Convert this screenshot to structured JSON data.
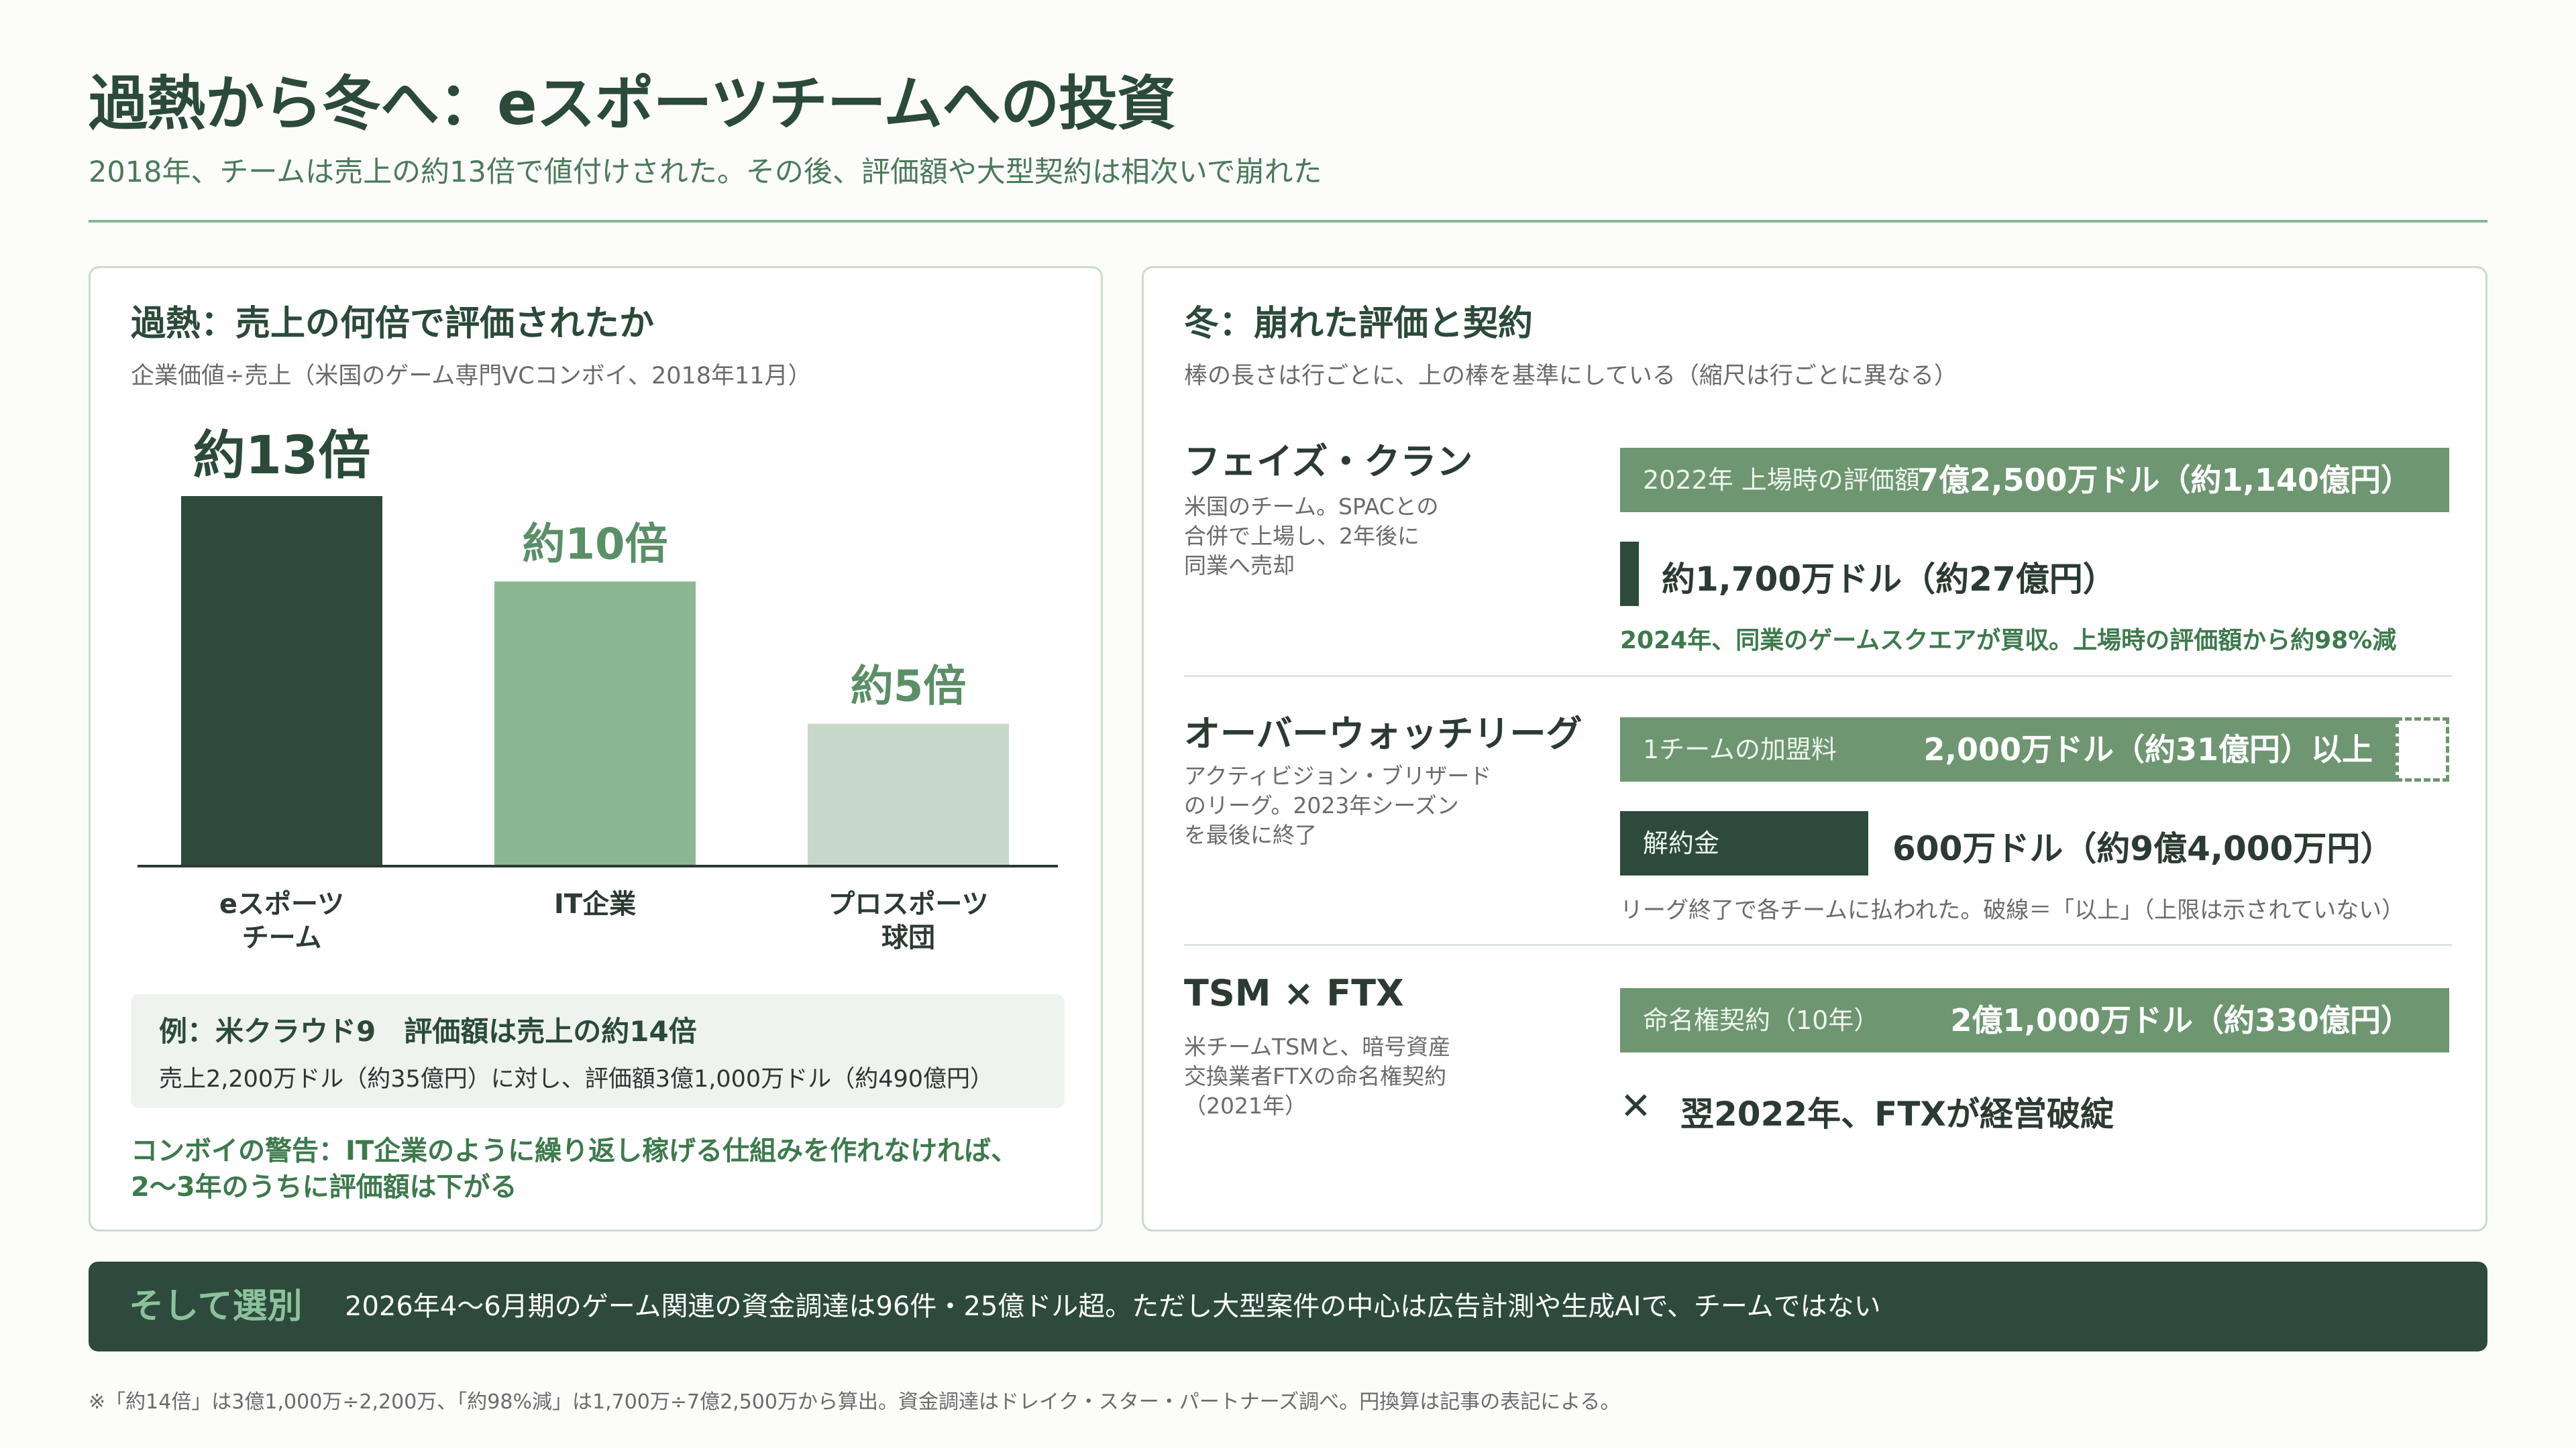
{
  "header": {
    "title": "過熱から冬へ：eスポーツチームへの投資",
    "subtitle": "2018年、チームは売上の約13倍で値付けされた。その後、評価額や大型契約は相次いで崩れた"
  },
  "left_panel": {
    "title": "過熱：売上の何倍で評価されたか",
    "subtitle": "企業価値÷売上（米国のゲーム専門VCコンボイ、2018年11月）",
    "example_title": "例：米クラウド9　評価額は売上の約14倍",
    "example_detail": "売上2,200万ドル（約35億円）に対し、評価額3億1,000万ドル（約490億円）",
    "warning_line1": "コンボイの警告：IT企業のように繰り返し稼げる仕組みを作れなければ、",
    "warning_line2": "2〜3年のうちに評価額は下がる"
  },
  "chart_data": {
    "type": "bar",
    "categories": [
      [
        "eスポーツ",
        "チーム"
      ],
      [
        "IT企業"
      ],
      [
        "プロスポーツ",
        "球団"
      ]
    ],
    "values": [
      13,
      10,
      5
    ],
    "value_labels": [
      "約13倍",
      "約10倍",
      "約5倍"
    ],
    "ylim": [
      0,
      13
    ],
    "colors": [
      "#2d4a3c",
      "#8bb893",
      "#c8d9cb"
    ],
    "value_label_colors": [
      "#2b4a3a",
      "#5b8f67",
      "#5b8f67"
    ]
  },
  "right_panel": {
    "title": "冬：崩れた評価と契約",
    "subtitle": "棒の長さは行ごとに、上の棒を基準にしている（縮尺は行ごとに異なる）",
    "cases": [
      {
        "name": "フェイズ・クラン",
        "desc": [
          "米国のチーム。SPACとの",
          "合併で上場し、2年後に",
          "同業へ売却"
        ],
        "bar1_label": "2022年 上場時の評価額",
        "bar1_value": "7億2,500万ドル（約1,140億円）",
        "bar2_value": "約1,700万ドル（約27億円）",
        "bar2_ratio": 0.0234,
        "note": "2024年、同業のゲームスクエアが買収。上場時の評価額から約98%減"
      },
      {
        "name": "オーバーウォッチリーグ",
        "desc": [
          "アクティビジョン・ブリザード",
          "のリーグ。2023年シーズン",
          "を最後に終了"
        ],
        "bar1_label": "1チームの加盟料",
        "bar1_value": "2,000万ドル（約31億円）以上",
        "bar2_label": "解約金",
        "bar2_value": "600万ドル（約9億4,000万円）",
        "bar2_ratio": 0.3,
        "note": "リーグ終了で各チームに払われた。破線＝「以上」（上限は示されていない）"
      },
      {
        "name": "TSM × FTX",
        "desc": [
          "米チームTSMと、暗号資産",
          "交換業者FTXの命名権契約",
          "（2021年）"
        ],
        "bar1_label": "命名権契約（10年）",
        "bar1_value": "2億1,000万ドル（約330億円）",
        "outcome_mark": "✕",
        "outcome": "翌2022年、FTXが経営破綻"
      }
    ]
  },
  "banner": {
    "label": "そして選別",
    "text": "2026年4〜6月期のゲーム関連の資金調達は96件・25億ドル超。ただし大型案件の中心は広告計測や生成AIで、チームではない"
  },
  "footnote": "※「約14倍」は3億1,000万÷2,200万、「約98%減」は1,700万÷7億2,500万から算出。資金調達はドレイク・スター・パートナーズ調べ。円換算は記事の表記による。"
}
